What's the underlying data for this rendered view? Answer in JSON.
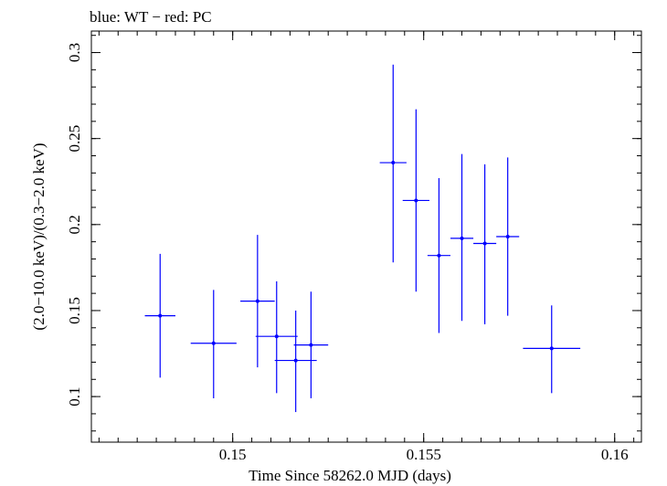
{
  "chart_data": {
    "type": "scatter",
    "title": "blue: WT − red: PC",
    "xlabel": "Time Since 58262.0 MJD (days)",
    "ylabel": "(2.0−10.0 keV)/(0.3−2.0 keV)",
    "xlim": [
      0.1463,
      0.1607
    ],
    "ylim": [
      0.0735,
      0.3125
    ],
    "x_major_ticks": [
      0.15,
      0.155,
      0.16
    ],
    "x_tick_labels": [
      "0.15",
      "0.155",
      "0.16"
    ],
    "x_minor_step": 0.0005,
    "y_major_ticks": [
      0.1,
      0.15,
      0.2,
      0.25,
      0.3
    ],
    "y_tick_labels": [
      "0.1",
      "0.15",
      "0.2",
      "0.25",
      "0.3"
    ],
    "y_minor_step": 0.01,
    "grid": false,
    "series": [
      {
        "name": "WT",
        "color": "#0000ff",
        "points": [
          {
            "x": 0.1481,
            "xerr": 0.0004,
            "y": 0.147,
            "ylo": 0.111,
            "yhi": 0.183
          },
          {
            "x": 0.1495,
            "xerr": 0.0006,
            "y": 0.131,
            "ylo": 0.099,
            "yhi": 0.162
          },
          {
            "x": 0.15205,
            "xerr": 0.00045,
            "y": 0.13,
            "ylo": 0.099,
            "yhi": 0.161
          },
          {
            "x": 0.15065,
            "xerr": 0.00045,
            "y": 0.1555,
            "ylo": 0.117,
            "yhi": 0.194
          },
          {
            "x": 0.15115,
            "xerr": 0.00055,
            "y": 0.135,
            "ylo": 0.102,
            "yhi": 0.167
          },
          {
            "x": 0.15165,
            "xerr": 0.00055,
            "y": 0.121,
            "ylo": 0.091,
            "yhi": 0.15
          },
          {
            "x": 0.1542,
            "xerr": 0.00035,
            "y": 0.236,
            "ylo": 0.178,
            "yhi": 0.293
          },
          {
            "x": 0.1548,
            "xerr": 0.00035,
            "y": 0.214,
            "ylo": 0.161,
            "yhi": 0.267
          },
          {
            "x": 0.1554,
            "xerr": 0.0003,
            "y": 0.182,
            "ylo": 0.137,
            "yhi": 0.227
          },
          {
            "x": 0.156,
            "xerr": 0.0003,
            "y": 0.192,
            "ylo": 0.144,
            "yhi": 0.241
          },
          {
            "x": 0.1566,
            "xerr": 0.0003,
            "y": 0.189,
            "ylo": 0.142,
            "yhi": 0.235
          },
          {
            "x": 0.1572,
            "xerr": 0.0003,
            "y": 0.193,
            "ylo": 0.147,
            "yhi": 0.239
          },
          {
            "x": 0.15835,
            "xerr": 0.00075,
            "y": 0.128,
            "ylo": 0.102,
            "yhi": 0.153
          }
        ]
      }
    ]
  }
}
